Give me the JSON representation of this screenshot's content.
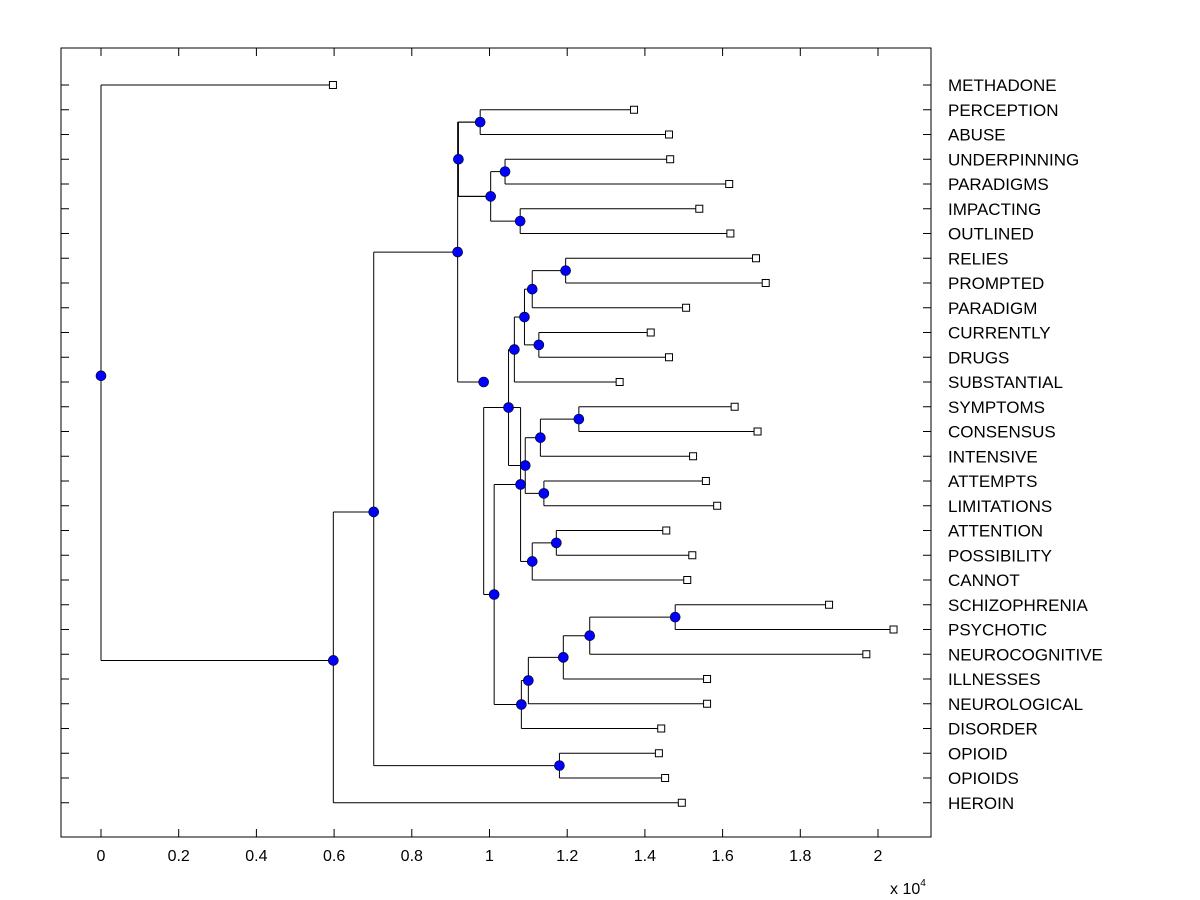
{
  "chart_data": {
    "type": "dendrogram",
    "orientation": "horizontal",
    "x_axis": {
      "ticks": [
        0,
        0.2,
        0.4,
        0.6,
        0.8,
        1,
        1.2,
        1.4,
        1.6,
        1.8,
        2
      ],
      "tick_labels": [
        "0",
        "0.2",
        "0.4",
        "0.6",
        "0.8",
        "1",
        "1.2",
        "1.4",
        "1.6",
        "1.8",
        "2"
      ],
      "range": [
        -0.1,
        2.14
      ],
      "multiplier_base": "x 10",
      "multiplier_exponent": "4"
    },
    "leaves": [
      {
        "label": "METHADONE",
        "x": 0.597
      },
      {
        "label": "PERCEPTION",
        "x": 1.372
      },
      {
        "label": "ABUSE",
        "x": 1.462
      },
      {
        "label": "UNDERPINNING",
        "x": 1.465
      },
      {
        "label": "PARADIGMS",
        "x": 1.617
      },
      {
        "label": "IMPACTING",
        "x": 1.54
      },
      {
        "label": "OUTLINED",
        "x": 1.62
      },
      {
        "label": "RELIES",
        "x": 1.686
      },
      {
        "label": "PROMPTED",
        "x": 1.711
      },
      {
        "label": "PARADIGM",
        "x": 1.506
      },
      {
        "label": "CURRENTLY",
        "x": 1.415
      },
      {
        "label": "DRUGS",
        "x": 1.462
      },
      {
        "label": "SUBSTANTIAL",
        "x": 1.335
      },
      {
        "label": "SYMPTOMS",
        "x": 1.631
      },
      {
        "label": "CONSENSUS",
        "x": 1.69
      },
      {
        "label": "INTENSIVE",
        "x": 1.524
      },
      {
        "label": "ATTEMPTS",
        "x": 1.557
      },
      {
        "label": "LIMITATIONS",
        "x": 1.586
      },
      {
        "label": "ATTENTION",
        "x": 1.455
      },
      {
        "label": "POSSIBILITY",
        "x": 1.522
      },
      {
        "label": "CANNOT",
        "x": 1.509
      },
      {
        "label": "SCHIZOPHRENIA",
        "x": 1.874
      },
      {
        "label": "PSYCHOTIC",
        "x": 2.04
      },
      {
        "label": "NEUROCOGNITIVE",
        "x": 1.97
      },
      {
        "label": "ILLNESSES",
        "x": 1.56
      },
      {
        "label": "NEUROLOGICAL",
        "x": 1.56
      },
      {
        "label": "DISORDER",
        "x": 1.442
      },
      {
        "label": "OPIOID",
        "x": 1.436
      },
      {
        "label": "OPIOIDS",
        "x": 1.452
      },
      {
        "label": "HEROIN",
        "x": 1.495
      }
    ],
    "merges": [
      {
        "a": 1,
        "b": 2,
        "x": 0.976
      },
      {
        "a": 3,
        "b": 4,
        "x": 1.04
      },
      {
        "a": 5,
        "b": 6,
        "x": 1.079
      },
      {
        "a": "m1",
        "b": "m2",
        "x": 1.003
      },
      {
        "a": "m0",
        "b": "m3",
        "x": 0.92
      },
      {
        "a": 7,
        "b": 8,
        "x": 1.196
      },
      {
        "a": "m5",
        "b": 9,
        "x": 1.11
      },
      {
        "a": 10,
        "b": 11,
        "x": 1.127
      },
      {
        "a": "m6",
        "b": "m7",
        "x": 1.09
      },
      {
        "a": "m8",
        "b": 12,
        "x": 1.064
      },
      {
        "a": 13,
        "b": 14,
        "x": 1.23
      },
      {
        "a": "m10",
        "b": 15,
        "x": 1.131
      },
      {
        "a": 16,
        "b": 17,
        "x": 1.14
      },
      {
        "a": "m11",
        "b": "m12",
        "x": 1.092
      },
      {
        "a": "m13",
        "b": "m9",
        "x": 1.049
      },
      {
        "a": 18,
        "b": 19,
        "x": 1.172
      },
      {
        "a": "m15",
        "b": 20,
        "x": 1.11
      },
      {
        "a": "m14",
        "b": "m16",
        "x": 1.08
      },
      {
        "a": 21,
        "b": 22,
        "x": 1.478
      },
      {
        "a": "m18",
        "b": 23,
        "x": 1.258
      },
      {
        "a": "m19",
        "b": 24,
        "x": 1.19
      },
      {
        "a": "m20",
        "b": 25,
        "x": 1.1
      },
      {
        "a": "m21",
        "b": 26,
        "x": 1.082
      },
      {
        "a": "m17",
        "b": "m22",
        "x": 1.012
      },
      {
        "a": "m9x",
        "b": "m23",
        "x": 0.985
      },
      {
        "a": "m4",
        "b": "m24",
        "x": 0.918
      },
      {
        "a": 27,
        "b": 28,
        "x": 1.18
      },
      {
        "a": "m25",
        "b": "m26",
        "x": 0.702
      },
      {
        "a": "m27",
        "b": 29,
        "x": 0.598
      },
      {
        "a": 0,
        "b": "m28",
        "x": 0
      }
    ]
  },
  "colors": {
    "node_fill": "#0000ff",
    "line": "#000000",
    "leaf_marker_fill": "#ffffff"
  }
}
